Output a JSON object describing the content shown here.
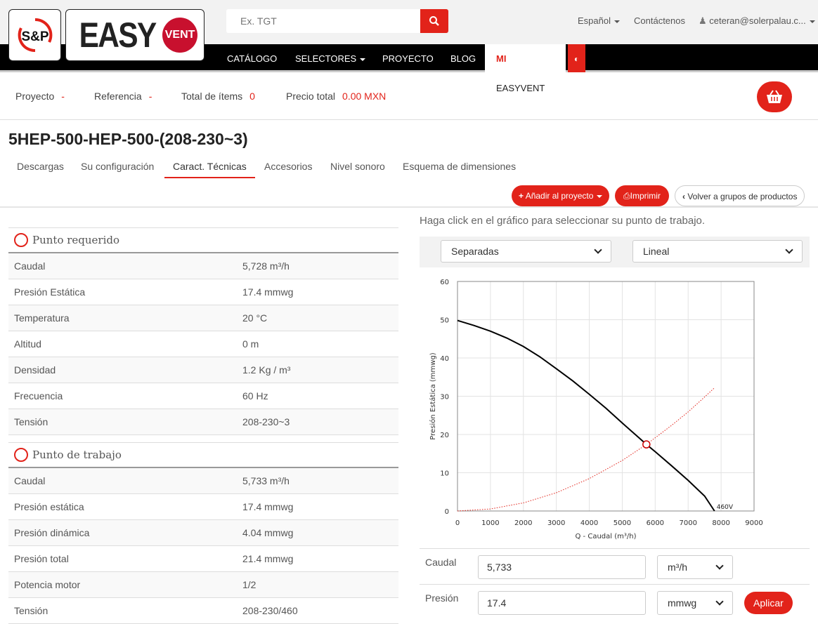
{
  "header": {
    "logo_sp": "S&P",
    "logo_easy": "EASY",
    "logo_vent": "VENT",
    "search_placeholder": "Ex. TGT",
    "language": "Español",
    "contact": "Contáctenos",
    "user": "ceteran@solerpalau.c..."
  },
  "nav": {
    "items": [
      "CATÁLOGO",
      "SELECTORES",
      "PROYECTO",
      "BLOG"
    ],
    "mi": "MI",
    "easyvent": "EASYVENT"
  },
  "project": {
    "proyecto_label": "Proyecto",
    "proyecto_value": "-",
    "referencia_label": "Referencia",
    "referencia_value": "-",
    "items_label": "Total de ítems",
    "items_value": "0",
    "precio_label": "Precio total",
    "precio_value": "0.00 MXN"
  },
  "product": {
    "title": "5HEP-500-HEP-500-(208-230~3)"
  },
  "tabs": [
    "Descargas",
    "Su configuración",
    "Caract. Técnicas",
    "Accesorios",
    "Nivel sonoro",
    "Esquema de dimensiones"
  ],
  "actions": {
    "add": "Añadir al proyecto",
    "print": "Imprimir",
    "back": "Volver a grupos de productos"
  },
  "required": {
    "title": "Punto requerido",
    "rows": [
      [
        "Caudal",
        "5,728 m³/h"
      ],
      [
        "Presión Estática",
        "17.4 mmwg"
      ],
      [
        "Temperatura",
        "20 °C"
      ],
      [
        "Altitud",
        "0 m"
      ],
      [
        "Densidad",
        "1.2 Kg / m³"
      ],
      [
        "Frecuencia",
        "60 Hz"
      ],
      [
        "Tensión",
        "208-230~3"
      ]
    ]
  },
  "working": {
    "title": "Punto de trabajo",
    "rows": [
      [
        "Caudal",
        "5,733 m³/h"
      ],
      [
        "Presión estática",
        "17.4 mmwg"
      ],
      [
        "Presión dinámica",
        "4.04 mmwg"
      ],
      [
        "Presión total",
        "21.4 mmwg"
      ],
      [
        "Potencia motor",
        "1/2"
      ],
      [
        "Tensión",
        "208-230/460"
      ]
    ]
  },
  "chart_panel": {
    "hint": "Haga click en el gráfico para seleccionar su punto de trabajo.",
    "select1": "Separadas",
    "select2": "Lineal"
  },
  "form": {
    "caudal_label": "Caudal",
    "caudal_value": "5,733",
    "caudal_unit": "m³/h",
    "presion_label": "Presión",
    "presion_value": "17.4",
    "presion_unit": "mmwg",
    "apply": "Aplicar"
  },
  "colors": {
    "accent": "#e2231a",
    "fan_curve": "#000000",
    "system_curve": "#e2231a"
  },
  "chart_data": {
    "type": "line",
    "xlabel": "Q - Caudal (m³/h)",
    "ylabel": "Presión Estática (mmwg)",
    "xlim": [
      0,
      9000
    ],
    "ylim": [
      0,
      60
    ],
    "xticks": [
      0,
      1000,
      2000,
      3000,
      4000,
      5000,
      6000,
      7000,
      8000,
      9000
    ],
    "yticks": [
      0,
      10,
      20,
      30,
      40,
      50,
      60
    ],
    "grid": true,
    "series": [
      {
        "name": "460V",
        "style": "solid",
        "x": [
          0,
          500,
          1000,
          1500,
          2000,
          2500,
          3000,
          3500,
          4000,
          4500,
          5000,
          5500,
          5733,
          6000,
          6500,
          7000,
          7500,
          7800
        ],
        "y": [
          49.8,
          48.5,
          47,
          45.2,
          43,
          40.3,
          37.2,
          34,
          30.5,
          26.9,
          23,
          19.2,
          17.4,
          15.5,
          11.8,
          8,
          3.9,
          0
        ]
      },
      {
        "style": "dotted",
        "x": [
          0,
          1000,
          2000,
          3000,
          4000,
          5000,
          5733,
          6500,
          7000,
          7500,
          7800
        ],
        "y": [
          0,
          0.53,
          2.12,
          4.77,
          8.47,
          13.2,
          17.4,
          22.4,
          25.9,
          29.8,
          32.2
        ]
      }
    ],
    "operating_point": {
      "x": 5733,
      "y": 17.4
    }
  }
}
